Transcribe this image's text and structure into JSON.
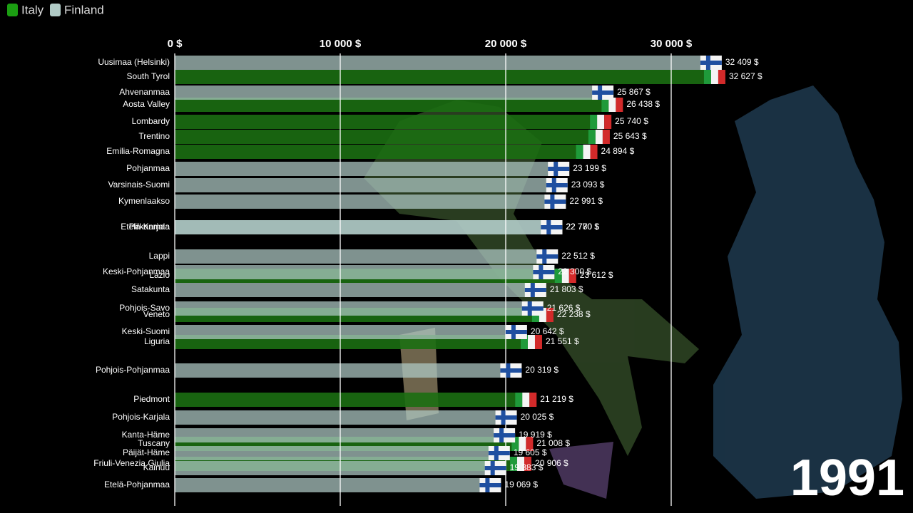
{
  "chart_data": {
    "type": "bar",
    "annotation": "1991",
    "xlim": [
      0,
      35000
    ],
    "xticks": [
      {
        "value": 0,
        "label": "0 $"
      },
      {
        "value": 10000,
        "label": "10 000 $"
      },
      {
        "value": 20000,
        "label": "20 000 $"
      },
      {
        "value": 30000,
        "label": "30 000 $"
      }
    ],
    "grid": true,
    "legend": "top-left",
    "series": [
      {
        "name": "Italy",
        "color": "#1b6e12",
        "categories": [
          "South Tyrol",
          "Aosta Valley",
          "Lombardy",
          "Trentino",
          "Emilia-Romagna",
          "Lazio",
          "Veneto",
          "Liguria",
          "Piedmont",
          "Tuscany",
          "Friuli-Venezia Giulia"
        ],
        "values": [
          32627,
          26438,
          25740,
          25643,
          24894,
          23612,
          22238,
          21551,
          21219,
          21008,
          20906
        ],
        "value_labels": [
          "32 627 $",
          "26 438 $",
          "25 740 $",
          "25 643 $",
          "24 894 $",
          "23 612 $",
          "22 238 $",
          "21 551 $",
          "21 219 $",
          "21 008 $",
          "20 906 $"
        ]
      },
      {
        "name": "Finland",
        "color": "#b0cac6",
        "categories": [
          "Uusimaa (Helsinki)",
          "Ahvenanmaa",
          "Pohjanmaa",
          "Varsinais-Suomi",
          "Kymenlaakso",
          "Pirkanmaa",
          "Etelä-Karjala",
          "Lappi",
          "Keski-Pohjanmaa",
          "Satakunta",
          "Pohjois-Savo",
          "Keski-Suomi",
          "Pohjois-Pohjanmaa",
          "Pohjois-Karjala",
          "Kanta-Häme",
          "Päijät-Häme",
          "Kainuu",
          "Etelä-Pohjanmaa"
        ],
        "values": [
          32409,
          25867,
          23199,
          23093,
          22991,
          22780,
          22770,
          22512,
          22300,
          21803,
          21626,
          20642,
          20319,
          20025,
          19919,
          19605,
          19383,
          19069
        ],
        "value_labels": [
          "32 409 $",
          "25 867 $",
          "23 199 $",
          "23 093 $",
          "22 991 $",
          "22 780 $",
          "22 770 $",
          "22 512 $",
          "22 300 $",
          "21 803 $",
          "21 626 $",
          "20 642 $",
          "20 319 $",
          "20 025 $",
          "19 919 $",
          "19 605 $",
          "19 383 $",
          "19 069 $"
        ]
      }
    ]
  }
}
